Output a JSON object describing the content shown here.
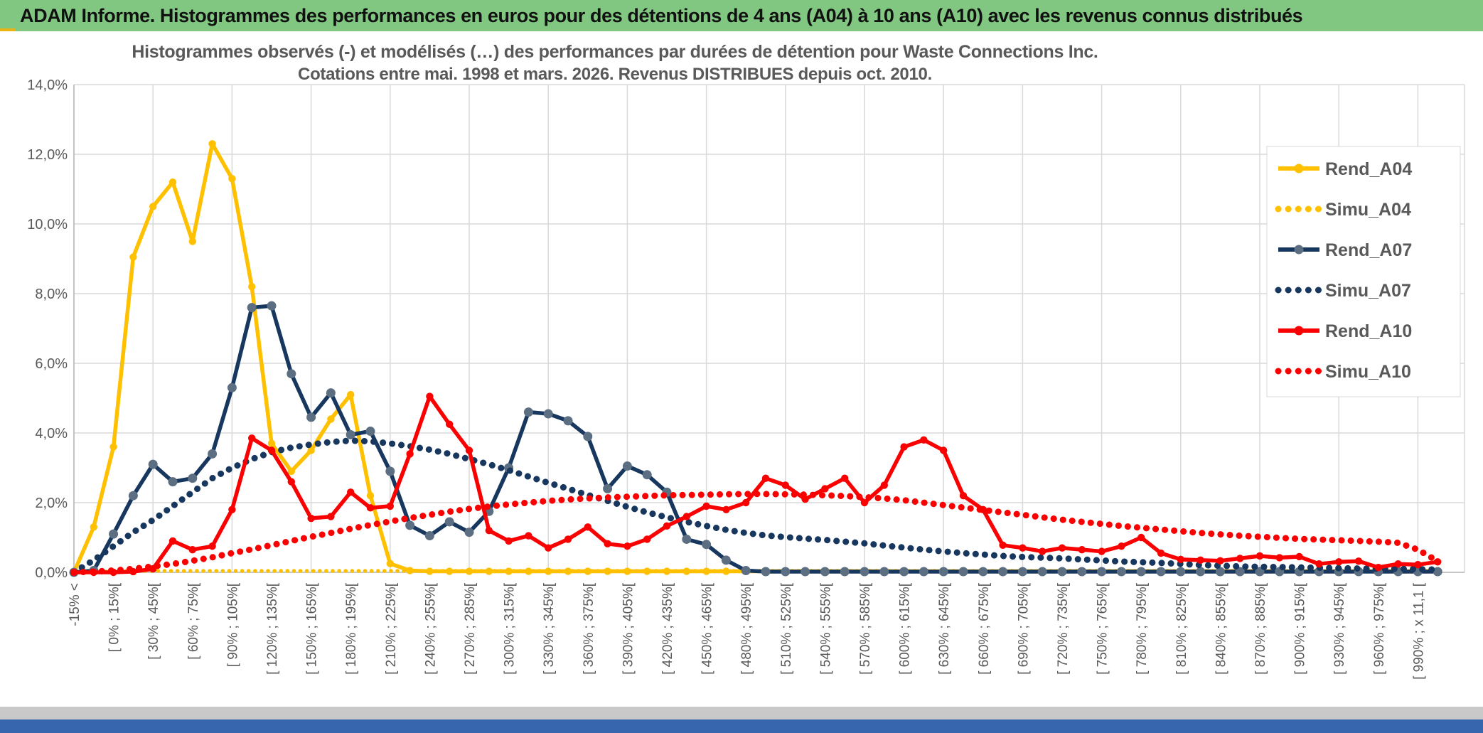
{
  "header": {
    "title": "ADAM Informe. Histogrammes des performances en euros pour des détentions de 4 ans (A04) à 10 ans (A10) avec les revenus connus distribués"
  },
  "chart_data": {
    "type": "line",
    "title": "Histogrammes observés (-) et modélisés (…) des performances par durées de détention pour Waste Connections Inc.",
    "subtitle": "Cotations entre mai. 1998 et mars. 2026. Revenus DISTRIBUES depuis oct. 2010.",
    "ylabel": "",
    "ylim": [
      0,
      14
    ],
    "ytick_labels": [
      "0,0%",
      "2,0%",
      "4,0%",
      "6,0%",
      "8,0%",
      "10,0%",
      "12,0%",
      "14,0%"
    ],
    "grid": true,
    "legend_position": "right",
    "n_points": 70,
    "xtick_every": 2,
    "xtick_labels": [
      "-15% <",
      "[ 0% ; 15%[",
      "[ 30% ; 45%[",
      "[ 60% ; 75%[",
      "[ 90% ; 105%[",
      "[ 120% ; 135%[",
      "[ 150% ; 165%[",
      "[ 180% ; 195%[",
      "[ 210% ; 225%[",
      "[ 240% ; 255%[",
      "[ 270% ; 285%[",
      "[ 300% ; 315%[",
      "[ 330% ; 345%[",
      "[ 360% ; 375%[",
      "[ 390% ; 405%[",
      "[ 420% ; 435%[",
      "[ 450% ; 465%[",
      "[ 480% ; 495%[",
      "[ 510% ; 525%[",
      "[ 540% ; 555%[",
      "[ 570% ; 585%[",
      "[ 600% ; 615%[",
      "[ 630% ; 645%[",
      "[ 660% ; 675%[",
      "[ 690% ; 705%[",
      "[ 720% ; 735%[",
      "[ 750% ; 765%[",
      "[ 780% ; 795%[",
      "[ 810% ; 825%[",
      "[ 840% ; 855%[",
      "[ 870% ; 885%[",
      "[ 900% ; 915%[",
      "[ 930% ; 945%[",
      "[ 960% ; 975%[",
      "[ 990% ; x 11,1 ["
    ],
    "series": [
      {
        "name": "Rend_A04",
        "style": "solid",
        "color": "#FFC000",
        "marker_color": "#FFC000",
        "values": [
          0,
          1.3,
          3.6,
          9.05,
          10.5,
          11.2,
          9.5,
          12.3,
          11.3,
          8.2,
          3.7,
          2.9,
          3.5,
          4.4,
          5.1,
          2.2,
          0.25,
          0.05,
          0.03,
          0.03,
          0.03,
          0.03,
          0.03,
          0.03,
          0.03,
          0.03,
          0.03,
          0.03,
          0.03,
          0.03,
          0.03,
          0.03,
          0.03,
          0.03,
          0.03,
          0.03,
          0.03,
          0.03,
          0.03,
          0.03,
          0.03,
          0.03,
          0.03,
          0.03,
          0.03,
          0.03,
          0.03,
          0.03,
          0.03,
          0.03,
          0.03,
          0.03,
          0.03,
          0.03,
          0.03,
          0.03,
          0.03,
          0.03,
          0.03,
          0.03,
          0.03,
          0.03,
          0.03,
          0.03,
          0.03,
          0.03,
          0.03,
          0.03,
          0.03,
          0.03
        ]
      },
      {
        "name": "Simu_A04",
        "style": "dotted",
        "color": "#FFC000",
        "values": [
          0,
          0.01,
          0.02,
          0.04,
          0.04,
          0.04,
          0.04,
          0.04,
          0.04,
          0.04,
          0.04,
          0.04,
          0.04,
          0.04,
          0.04,
          0.04,
          0.04,
          0.04,
          0.04,
          0.04,
          0.04,
          0.04,
          0.04,
          0.04,
          0.04,
          0.04,
          0.04,
          0.04,
          0.04,
          0.04,
          0.04,
          0.04,
          0.04,
          0.04,
          0.04,
          0.04,
          0.04,
          0.04,
          0.04,
          0.04,
          0.04,
          0.04,
          0.04,
          0.04,
          0.04,
          0.04,
          0.04,
          0.04,
          0.04,
          0.04,
          0.04,
          0.04,
          0.04,
          0.04,
          0.04,
          0.04,
          0.04,
          0.04,
          0.04,
          0.04,
          0.04,
          0.04,
          0.04,
          0.04,
          0.04,
          0.04,
          0.04,
          0.04,
          0.04,
          0.04
        ]
      },
      {
        "name": "Rend_A07",
        "style": "solid",
        "color": "#17375E",
        "marker_color": "#5C6E81",
        "values": [
          0,
          0.05,
          1.1,
          2.2,
          3.1,
          2.6,
          2.7,
          3.4,
          5.3,
          7.6,
          7.65,
          5.7,
          4.45,
          5.15,
          3.95,
          4.05,
          2.9,
          1.35,
          1.05,
          1.45,
          1.15,
          1.75,
          3.0,
          4.6,
          4.55,
          4.35,
          3.9,
          2.4,
          3.05,
          2.8,
          2.3,
          0.95,
          0.8,
          0.35,
          0.05,
          0.02,
          0.02,
          0.02,
          0.02,
          0.02,
          0.02,
          0.02,
          0.02,
          0.02,
          0.02,
          0.02,
          0.02,
          0.02,
          0.02,
          0.02,
          0.02,
          0.02,
          0.02,
          0.02,
          0.02,
          0.02,
          0.02,
          0.02,
          0.02,
          0.02,
          0.02,
          0.02,
          0.02,
          0.02,
          0.02,
          0.02,
          0.02,
          0.02,
          0.02,
          0.02
        ]
      },
      {
        "name": "Simu_A07",
        "style": "dotted",
        "color": "#17375E",
        "values": [
          0,
          0.35,
          0.75,
          1.15,
          1.5,
          1.9,
          2.3,
          2.7,
          3.0,
          3.25,
          3.45,
          3.58,
          3.67,
          3.74,
          3.78,
          3.76,
          3.7,
          3.62,
          3.52,
          3.4,
          3.25,
          3.1,
          2.93,
          2.75,
          2.57,
          2.4,
          2.22,
          2.05,
          1.88,
          1.72,
          1.58,
          1.45,
          1.33,
          1.22,
          1.13,
          1.06,
          1.01,
          0.97,
          0.93,
          0.88,
          0.83,
          0.77,
          0.71,
          0.65,
          0.6,
          0.55,
          0.51,
          0.47,
          0.44,
          0.42,
          0.4,
          0.37,
          0.34,
          0.31,
          0.29,
          0.27,
          0.24,
          0.21,
          0.19,
          0.17,
          0.16,
          0.15,
          0.14,
          0.13,
          0.12,
          0.11,
          0.1,
          0.1,
          0.09,
          0.08
        ]
      },
      {
        "name": "Rend_A10",
        "style": "solid",
        "color": "#FA0000",
        "marker_color": "#FA0000",
        "values": [
          0,
          0,
          0,
          0.02,
          0.1,
          0.9,
          0.65,
          0.75,
          1.8,
          3.85,
          3.5,
          2.6,
          1.55,
          1.6,
          2.3,
          1.85,
          1.9,
          3.4,
          5.05,
          4.25,
          3.5,
          1.2,
          0.9,
          1.05,
          0.7,
          0.95,
          1.3,
          0.82,
          0.75,
          0.95,
          1.33,
          1.6,
          1.9,
          1.8,
          2.0,
          2.7,
          2.5,
          2.1,
          2.4,
          2.7,
          2.0,
          2.5,
          3.6,
          3.8,
          3.5,
          2.2,
          1.8,
          0.78,
          0.7,
          0.6,
          0.7,
          0.65,
          0.6,
          0.75,
          1.0,
          0.55,
          0.37,
          0.35,
          0.33,
          0.4,
          0.47,
          0.42,
          0.45,
          0.24,
          0.3,
          0.32,
          0.14,
          0.24,
          0.22,
          0.3
        ]
      },
      {
        "name": "Simu_A10",
        "style": "dotted",
        "color": "#FA0000",
        "values": [
          0,
          0.02,
          0.05,
          0.1,
          0.17,
          0.24,
          0.33,
          0.43,
          0.55,
          0.66,
          0.78,
          0.9,
          1.02,
          1.13,
          1.25,
          1.36,
          1.46,
          1.56,
          1.65,
          1.74,
          1.82,
          1.89,
          1.95,
          2.0,
          2.05,
          2.09,
          2.12,
          2.15,
          2.17,
          2.19,
          2.21,
          2.22,
          2.23,
          2.24,
          2.25,
          2.25,
          2.24,
          2.23,
          2.21,
          2.19,
          2.16,
          2.12,
          2.07,
          2.0,
          1.93,
          1.86,
          1.79,
          1.72,
          1.65,
          1.58,
          1.51,
          1.45,
          1.39,
          1.33,
          1.28,
          1.23,
          1.18,
          1.13,
          1.09,
          1.05,
          1.02,
          0.99,
          0.96,
          0.94,
          0.92,
          0.9,
          0.88,
          0.85,
          0.65,
          0.32
        ]
      }
    ]
  },
  "colors": {
    "header_green": "#81C781",
    "grid": "#D9D9D9",
    "axis": "#BFBFBF",
    "tick_text": "#595959",
    "footer_grey": "#C9C9C9",
    "footer_blue": "#3866AE",
    "gold_accent": "#EDB411"
  }
}
